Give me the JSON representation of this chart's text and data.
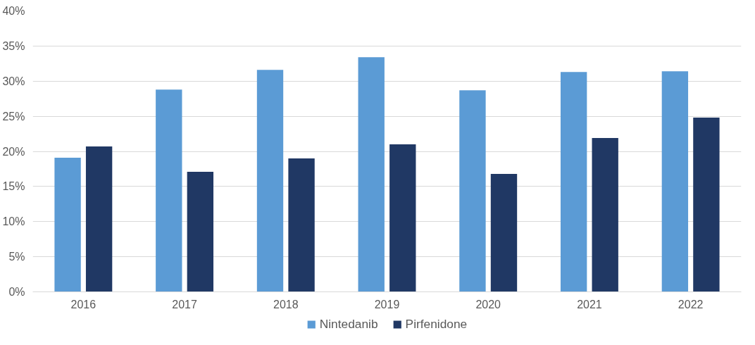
{
  "chart_data": {
    "type": "bar",
    "categories": [
      "2016",
      "2017",
      "2018",
      "2019",
      "2020",
      "2021",
      "2022"
    ],
    "series": [
      {
        "name": "Nintedanib",
        "color": "#5b9bd5",
        "values": [
          19.1,
          28.8,
          31.6,
          33.4,
          28.7,
          31.3,
          31.4
        ]
      },
      {
        "name": "Pirfenidone",
        "color": "#203864",
        "values": [
          20.7,
          17.1,
          19.0,
          21.0,
          16.8,
          21.9,
          24.8
        ]
      }
    ],
    "ylim": [
      0,
      40
    ],
    "yticks": [
      {
        "value": 0,
        "label": "0%"
      },
      {
        "value": 5,
        "label": "5%"
      },
      {
        "value": 10,
        "label": "10%"
      },
      {
        "value": 15,
        "label": "15%"
      },
      {
        "value": 20,
        "label": "20%"
      },
      {
        "value": 25,
        "label": "25%"
      },
      {
        "value": 30,
        "label": "30%"
      },
      {
        "value": 35,
        "label": "35%"
      },
      {
        "value": 40,
        "label": "40%"
      }
    ],
    "grid": "y",
    "legend": "bottom"
  }
}
